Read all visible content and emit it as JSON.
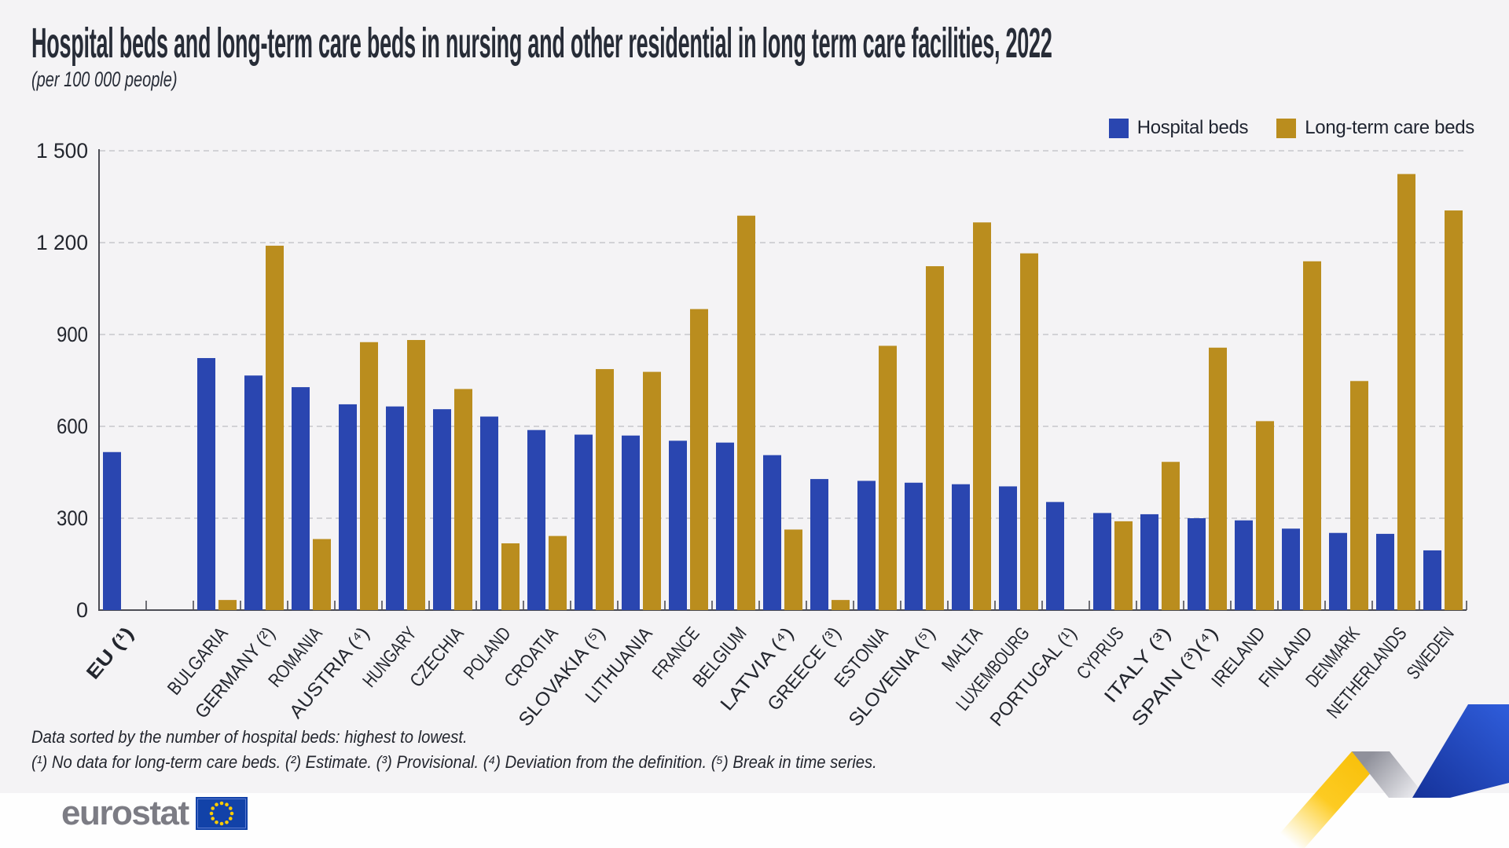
{
  "header": {
    "title": "Hospital beds and long-term care beds in nursing and other residential in long term care facilities, 2022",
    "subtitle": "(per 100 000 people)"
  },
  "footnotes": {
    "line1": "Data sorted by the number of hospital beds: highest to lowest.",
    "line2": "(¹) No data for long-term care beds. (²) Estimate. (³) Provisional. (⁴) Deviation from the definition. (⁵) Break in time series."
  },
  "logo": {
    "text": "eurostat"
  },
  "chart_data": {
    "type": "bar",
    "title": "Hospital beds and long-term care beds in nursing and other residential in long term care facilities, 2022",
    "unit": "per 100 000 people",
    "ylim": [
      0,
      1500
    ],
    "yticks": [
      0,
      300,
      600,
      900,
      1200,
      1500
    ],
    "ytick_labels": [
      "0",
      "300",
      "600",
      "900",
      "1 200",
      "1 500"
    ],
    "grid": "dashed horizontal",
    "legend_position": "top-right",
    "sort_note": "sorted by hospital beds, highest to lowest",
    "series": [
      {
        "name": "Hospital beds",
        "color": "#2A46B0"
      },
      {
        "name": "Long-term care beds",
        "color": "#BA8D1E"
      }
    ],
    "categories": [
      {
        "label": "EU (¹)",
        "bold": true,
        "hospital": 516,
        "ltc": null
      },
      {
        "label": "BULGARIA",
        "hospital": 823,
        "ltc": 33
      },
      {
        "label": "GERMANY (²)",
        "hospital": 766,
        "ltc": 1190
      },
      {
        "label": "ROMANIA",
        "hospital": 728,
        "ltc": 232
      },
      {
        "label": "AUSTRIA (⁴)",
        "hospital": 672,
        "ltc": 875
      },
      {
        "label": "HUNGARY",
        "hospital": 665,
        "ltc": 882
      },
      {
        "label": "CZECHIA",
        "hospital": 656,
        "ltc": 722
      },
      {
        "label": "POLAND",
        "hospital": 632,
        "ltc": 218
      },
      {
        "label": "CROATIA",
        "hospital": 588,
        "ltc": 242
      },
      {
        "label": "SLOVAKIA (⁵)",
        "hospital": 573,
        "ltc": 787
      },
      {
        "label": "LITHUANIA",
        "hospital": 570,
        "ltc": 778
      },
      {
        "label": "FRANCE",
        "hospital": 553,
        "ltc": 983
      },
      {
        "label": "BELGIUM",
        "hospital": 547,
        "ltc": 1288
      },
      {
        "label": "LATVIA (⁴)",
        "hospital": 506,
        "ltc": 263
      },
      {
        "label": "GREECE (³)",
        "hospital": 428,
        "ltc": 33
      },
      {
        "label": "ESTONIA",
        "hospital": 422,
        "ltc": 863
      },
      {
        "label": "SLOVENIA (⁵)",
        "hospital": 416,
        "ltc": 1123
      },
      {
        "label": "MALTA",
        "hospital": 411,
        "ltc": 1266
      },
      {
        "label": "LUXEMBOURG",
        "hospital": 404,
        "ltc": 1165
      },
      {
        "label": "PORTUGAL (¹)",
        "hospital": 353,
        "ltc": null
      },
      {
        "label": "CYPRUS",
        "hospital": 317,
        "ltc": 290
      },
      {
        "label": "ITALY (³)",
        "hospital": 313,
        "ltc": 484
      },
      {
        "label": "SPAIN (³)(⁴)",
        "hospital": 300,
        "ltc": 857
      },
      {
        "label": "IRELAND",
        "hospital": 293,
        "ltc": 617
      },
      {
        "label": "FINLAND",
        "hospital": 266,
        "ltc": 1139
      },
      {
        "label": "DENMARK",
        "hospital": 252,
        "ltc": 748
      },
      {
        "label": "NETHERLANDS",
        "hospital": 249,
        "ltc": 1424
      },
      {
        "label": "SWEDEN",
        "hospital": 195,
        "ltc": 1305
      }
    ]
  }
}
